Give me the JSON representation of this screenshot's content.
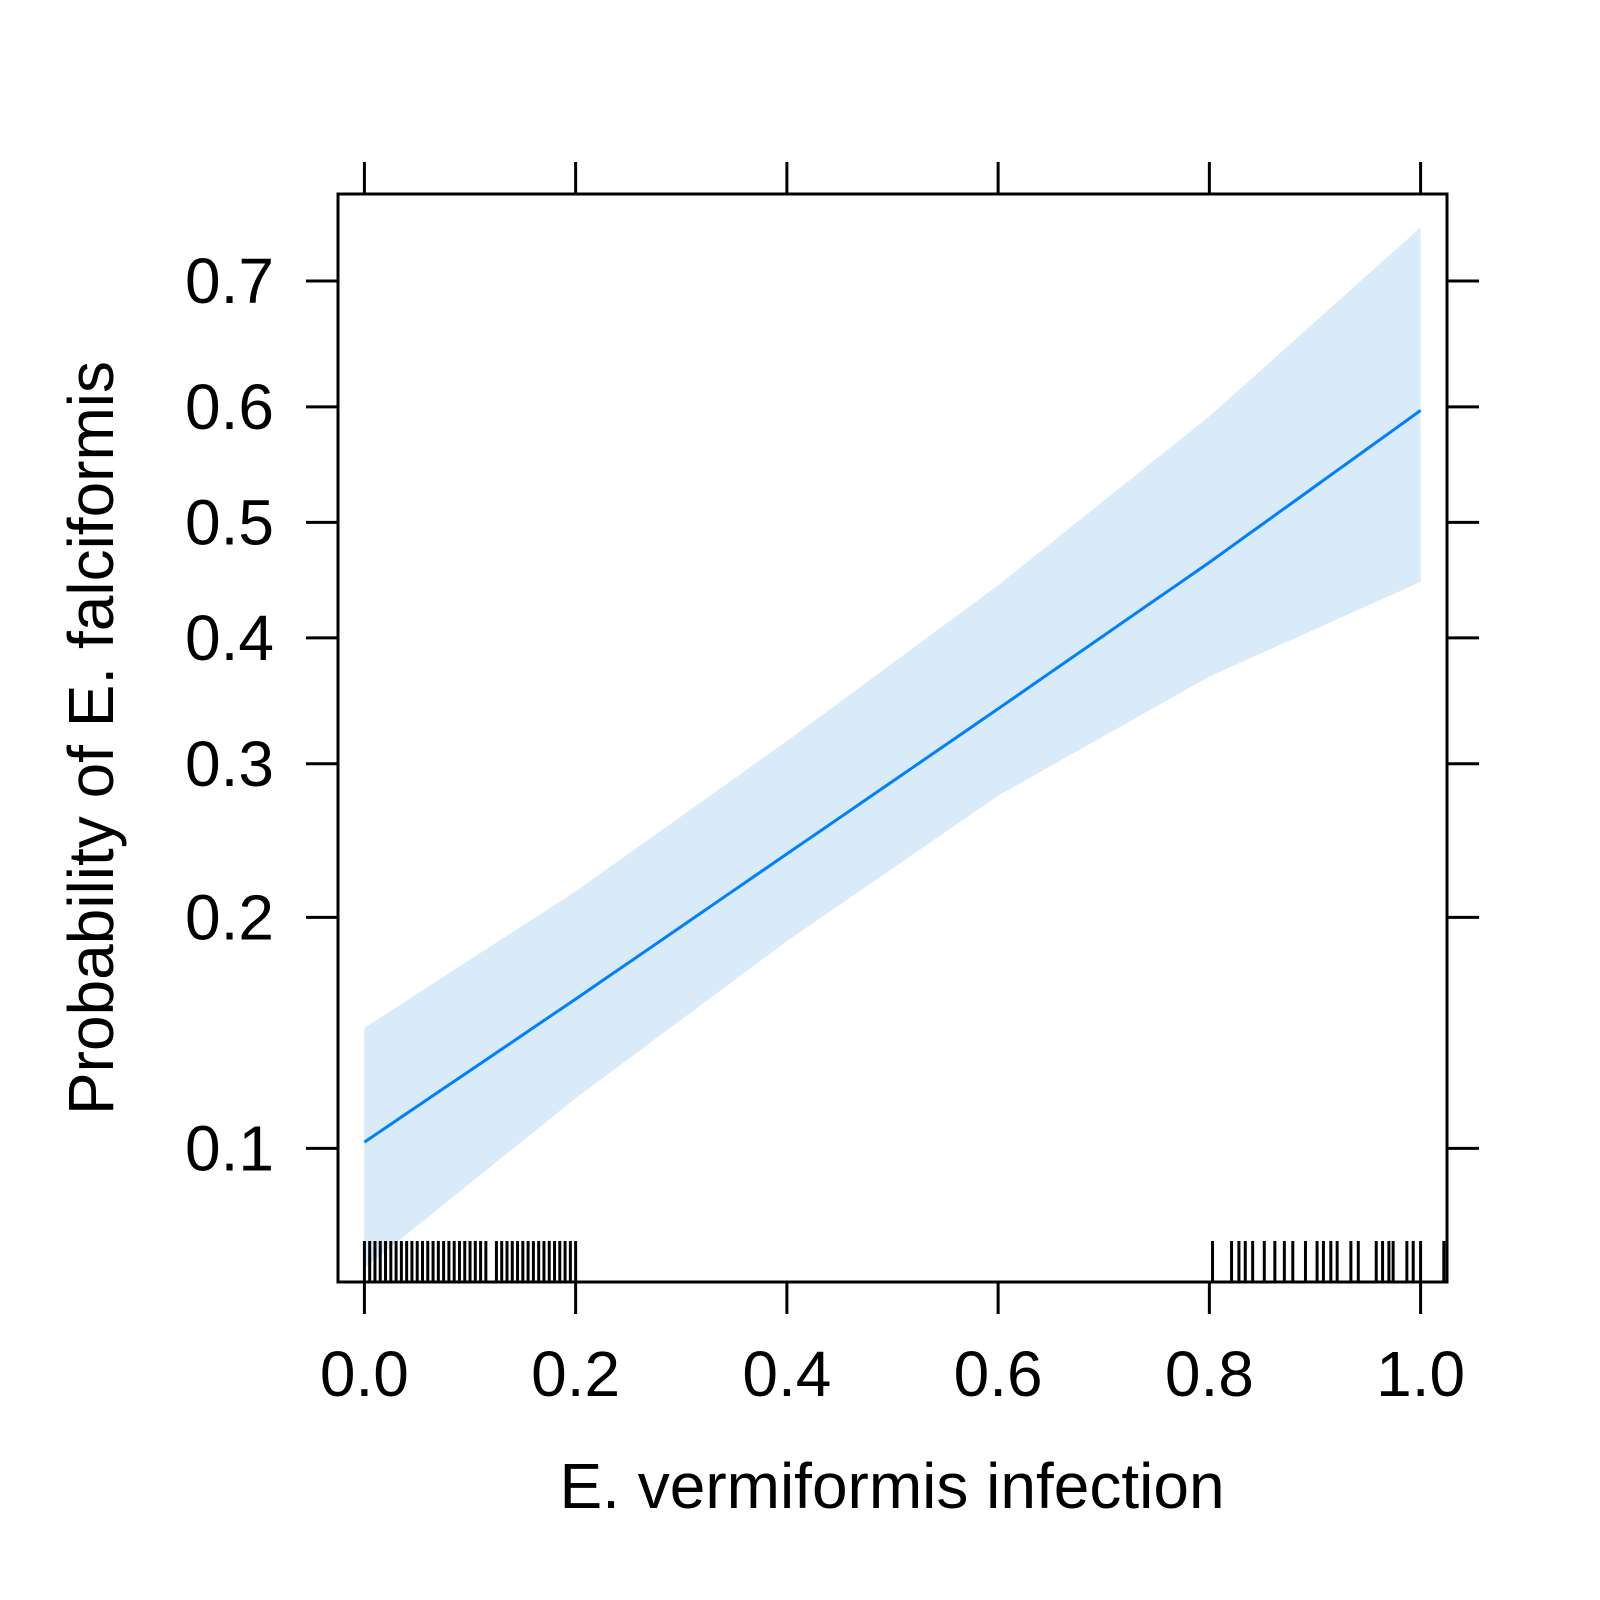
{
  "chart_data": {
    "type": "line",
    "title": "",
    "xlabel": "E. vermiformis infection",
    "ylabel": "Probability of E. falciformis",
    "xlim": [
      -0.025,
      1.025
    ],
    "ylim": [
      0.065,
      0.76
    ],
    "y_scale": "logit",
    "x_ticks": [
      "0.0",
      "0.2",
      "0.4",
      "0.6",
      "0.8",
      "1.0"
    ],
    "y_ticks": [
      "0.1",
      "0.2",
      "0.3",
      "0.4",
      "0.5",
      "0.6",
      "0.7"
    ],
    "fit": {
      "x": [
        0.0,
        0.2,
        0.4,
        0.6,
        0.8,
        1.0
      ],
      "y": [
        0.102,
        0.158,
        0.238,
        0.342,
        0.465,
        0.597
      ]
    },
    "confidence_band": {
      "x": [
        0.0,
        0.2,
        0.4,
        0.6,
        0.8,
        1.0
      ],
      "lower": [
        0.068,
        0.117,
        0.187,
        0.277,
        0.368,
        0.448
      ],
      "upper": [
        0.145,
        0.215,
        0.317,
        0.445,
        0.592,
        0.738
      ]
    },
    "rug": [
      0.0,
      0.005,
      0.01,
      0.015,
      0.02,
      0.025,
      0.03,
      0.035,
      0.04,
      0.045,
      0.05,
      0.055,
      0.06,
      0.065,
      0.07,
      0.075,
      0.08,
      0.085,
      0.09,
      0.095,
      0.1,
      0.105,
      0.11,
      0.115,
      0.125,
      0.13,
      0.135,
      0.14,
      0.145,
      0.15,
      0.155,
      0.16,
      0.165,
      0.17,
      0.175,
      0.18,
      0.185,
      0.19,
      0.195,
      0.2,
      0.803,
      0.821,
      0.828,
      0.834,
      0.841,
      0.852,
      0.862,
      0.871,
      0.879,
      0.891,
      0.902,
      0.908,
      0.915,
      0.921,
      0.934,
      0.941,
      0.958,
      0.964,
      0.97,
      0.974,
      0.987,
      0.993,
      1.0,
      1.022
    ],
    "grid": false,
    "colors": {
      "line": "#0080ff",
      "band": "#d9eaf9",
      "axis": "#000000"
    }
  }
}
